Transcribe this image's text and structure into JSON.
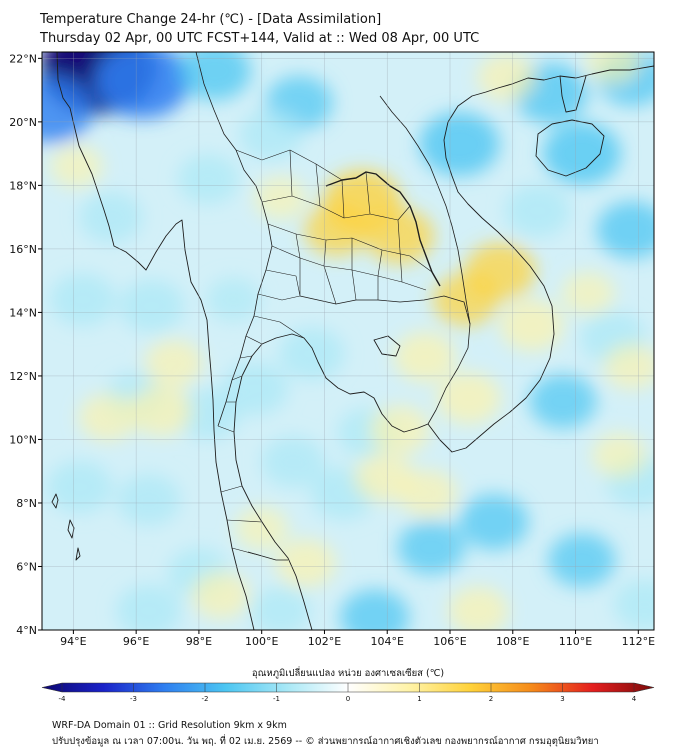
{
  "header": {
    "title": "Temperature Change 24-hr (℃) - [Data Assimilation]",
    "subtitle": "Thursday 02 Apr, 00 UTC FCST+144, Valid at :: Wed 08 Apr, 00 UTC"
  },
  "map": {
    "lon_range": [
      93,
      112.5
    ],
    "lat_range": [
      4,
      22.2
    ],
    "lon_ticks": [
      94,
      96,
      98,
      100,
      102,
      104,
      106,
      108,
      110,
      112
    ],
    "lat_ticks": [
      4,
      6,
      8,
      10,
      12,
      14,
      16,
      18,
      20,
      22
    ],
    "lon_tick_labels": [
      "94°E",
      "96°E",
      "98°E",
      "100°E",
      "102°E",
      "104°E",
      "106°E",
      "108°E",
      "110°E",
      "112°E"
    ],
    "lat_tick_labels": [
      "4°N",
      "6°N",
      "8°N",
      "10°N",
      "12°N",
      "14°N",
      "16°N",
      "18°N",
      "20°N",
      "22°N"
    ],
    "grid": true,
    "field_anomalies": [
      {
        "lon": 94.8,
        "lat": 21.7,
        "value": -4.0
      },
      {
        "lon": 96.2,
        "lat": 21.3,
        "value": -2.8
      },
      {
        "lon": 93.3,
        "lat": 20.4,
        "value": -2.2
      },
      {
        "lon": 98.5,
        "lat": 21.6,
        "value": -1.6
      },
      {
        "lon": 101.2,
        "lat": 20.6,
        "value": -1.3
      },
      {
        "lon": 98.3,
        "lat": 18.2,
        "value": -1.0
      },
      {
        "lon": 100.3,
        "lat": 19.6,
        "value": -1.1
      },
      {
        "lon": 106.3,
        "lat": 19.3,
        "value": -2.0
      },
      {
        "lon": 109.2,
        "lat": 20.9,
        "value": -1.7
      },
      {
        "lon": 110.2,
        "lat": 19.0,
        "value": -1.9
      },
      {
        "lon": 111.8,
        "lat": 21.4,
        "value": -1.5
      },
      {
        "lon": 111.8,
        "lat": 16.6,
        "value": -1.5
      },
      {
        "lon": 108.8,
        "lat": 17.2,
        "value": -1.2
      },
      {
        "lon": 95.2,
        "lat": 17.0,
        "value": -1.1
      },
      {
        "lon": 94.3,
        "lat": 14.4,
        "value": -1.2
      },
      {
        "lon": 96.5,
        "lat": 14.2,
        "value": -1.2
      },
      {
        "lon": 96.0,
        "lat": 11.3,
        "value": -1.1
      },
      {
        "lon": 94.2,
        "lat": 8.5,
        "value": -1.2
      },
      {
        "lon": 96.4,
        "lat": 8.1,
        "value": -1.1
      },
      {
        "lon": 98.3,
        "lat": 10.8,
        "value": -1.1
      },
      {
        "lon": 99.8,
        "lat": 11.6,
        "value": -1.2
      },
      {
        "lon": 101.6,
        "lat": 12.7,
        "value": -1.2
      },
      {
        "lon": 101.0,
        "lat": 9.3,
        "value": -1.1
      },
      {
        "lon": 102.6,
        "lat": 8.3,
        "value": -1.2
      },
      {
        "lon": 103.4,
        "lat": 10.2,
        "value": -1.0
      },
      {
        "lon": 103.6,
        "lat": 4.4,
        "value": -1.4
      },
      {
        "lon": 100.6,
        "lat": 4.6,
        "value": -0.9
      },
      {
        "lon": 96.4,
        "lat": 4.6,
        "value": -1.2
      },
      {
        "lon": 98.0,
        "lat": 5.8,
        "value": -1.0
      },
      {
        "lon": 105.4,
        "lat": 6.6,
        "value": -1.3
      },
      {
        "lon": 107.4,
        "lat": 7.4,
        "value": -1.4
      },
      {
        "lon": 110.2,
        "lat": 6.2,
        "value": -1.3
      },
      {
        "lon": 112.0,
        "lat": 8.7,
        "value": -1.2
      },
      {
        "lon": 109.6,
        "lat": 11.2,
        "value": -1.3
      },
      {
        "lon": 111.2,
        "lat": 13.2,
        "value": -1.2
      },
      {
        "lon": 112.2,
        "lat": 4.8,
        "value": -1.0
      },
      {
        "lon": 99.1,
        "lat": 14.4,
        "value": -0.6
      },
      {
        "lon": 103.2,
        "lat": 17.5,
        "value": 1.9
      },
      {
        "lon": 104.4,
        "lat": 16.4,
        "value": 1.4
      },
      {
        "lon": 102.4,
        "lat": 16.6,
        "value": 1.2
      },
      {
        "lon": 107.6,
        "lat": 15.3,
        "value": 1.5
      },
      {
        "lon": 106.5,
        "lat": 14.4,
        "value": 1.2
      },
      {
        "lon": 108.6,
        "lat": 13.6,
        "value": 1.1
      },
      {
        "lon": 105.2,
        "lat": 12.6,
        "value": 1.0
      },
      {
        "lon": 106.6,
        "lat": 11.3,
        "value": 1.1
      },
      {
        "lon": 104.4,
        "lat": 10.3,
        "value": 0.9
      },
      {
        "lon": 103.9,
        "lat": 8.8,
        "value": 0.9
      },
      {
        "lon": 105.3,
        "lat": 8.3,
        "value": 0.8
      },
      {
        "lon": 96.8,
        "lat": 10.9,
        "value": 1.0
      },
      {
        "lon": 95.1,
        "lat": 10.7,
        "value": 0.8
      },
      {
        "lon": 97.2,
        "lat": 12.4,
        "value": 0.8
      },
      {
        "lon": 101.4,
        "lat": 6.1,
        "value": 0.9
      },
      {
        "lon": 98.7,
        "lat": 5.1,
        "value": 0.8
      },
      {
        "lon": 106.9,
        "lat": 4.6,
        "value": 0.9
      },
      {
        "lon": 111.8,
        "lat": 12.3,
        "value": 0.7
      },
      {
        "lon": 110.4,
        "lat": 14.6,
        "value": 0.5
      },
      {
        "lon": 107.8,
        "lat": 21.4,
        "value": 0.8
      },
      {
        "lon": 111.2,
        "lat": 21.9,
        "value": 0.6
      },
      {
        "lon": 94.1,
        "lat": 18.6,
        "value": 0.5
      },
      {
        "lon": 100.6,
        "lat": 17.6,
        "value": 0.5
      },
      {
        "lon": 100.0,
        "lat": 7.2,
        "value": 0.5
      },
      {
        "lon": 111.4,
        "lat": 9.5,
        "value": 0.6
      }
    ]
  },
  "colorbar": {
    "label": "อุณหภูมิเปลี่ยนแปลง หน่วย องศาเซลเซียส (℃)",
    "range": [
      -4,
      4
    ],
    "ticks": [
      -4,
      -3,
      -2,
      -1,
      0,
      1,
      2,
      3,
      4
    ],
    "tick_labels": [
      "-4",
      "-3",
      "-2",
      "-1",
      "0",
      "1",
      "2",
      "3",
      "4"
    ],
    "colors": [
      "#0d0670",
      "#1a22c8",
      "#2f7ff0",
      "#4cc6f2",
      "#a8e8f6",
      "#ffffff",
      "#fff3a8",
      "#ffd23a",
      "#f58a1a",
      "#e41e1e",
      "#7a0a0a"
    ]
  },
  "footer": {
    "line1": "WRF-DA Domain 01 :: Grid Resolution 9km x 9km",
    "line2": "ปรับปรุงข้อมูล ณ เวลา 07:00น. วัน พฤ. ที่ 02 เม.ย. 2569 -- © ส่วนพยากรณ์อากาศเชิงตัวเลข กองพยากรณ์อากาศ กรมอุตุนิยมวิทยา"
  }
}
